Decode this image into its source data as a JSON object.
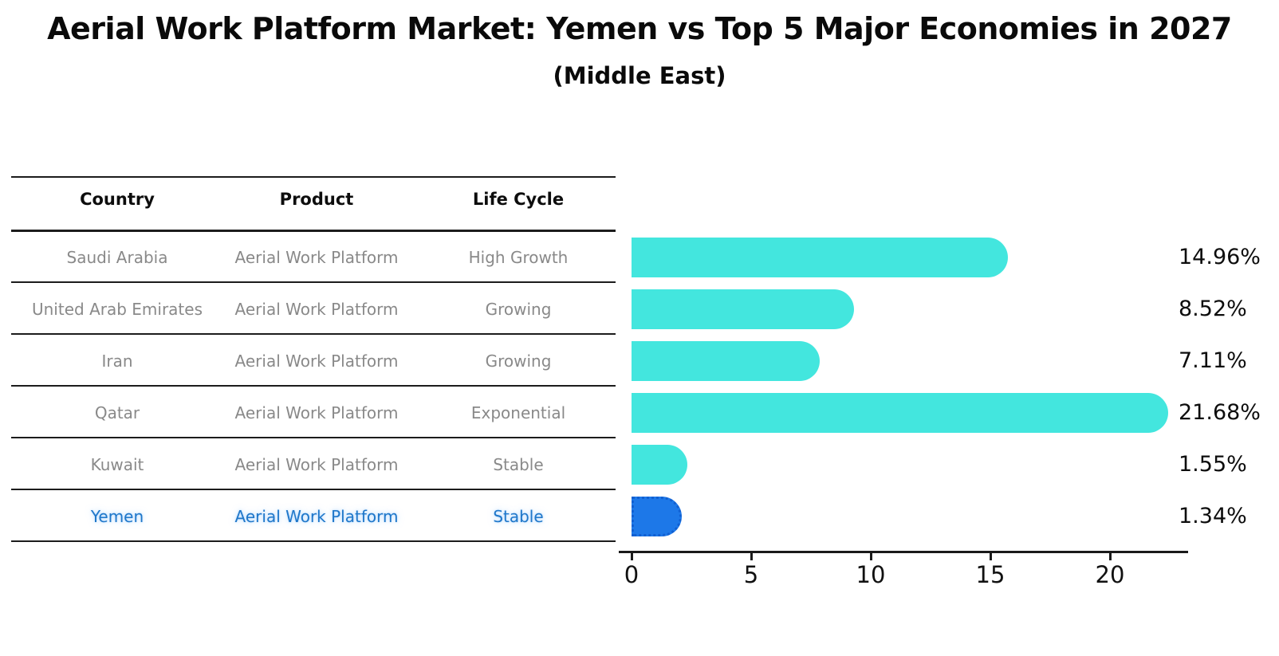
{
  "title": "Aerial Work Platform Market: Yemen vs Top 5 Major Economies in 2027",
  "subtitle": "(Middle East)",
  "table": {
    "headers": [
      "Country",
      "Product",
      "Life Cycle"
    ],
    "rows": [
      {
        "country": "Saudi Arabia",
        "product": "Aerial Work Platform",
        "life_cycle": "High Growth",
        "highlight": false
      },
      {
        "country": "United Arab Emirates",
        "product": "Aerial Work Platform",
        "life_cycle": "Growing",
        "highlight": false
      },
      {
        "country": "Iran",
        "product": "Aerial Work Platform",
        "life_cycle": "Growing",
        "highlight": false
      },
      {
        "country": "Qatar",
        "product": "Aerial Work Platform",
        "life_cycle": "Exponential",
        "highlight": false
      },
      {
        "country": "Kuwait",
        "product": "Aerial Work Platform",
        "life_cycle": "Stable",
        "highlight": false
      },
      {
        "country": "Yemen",
        "product": "Aerial Work Platform",
        "life_cycle": "Stable",
        "highlight": true
      }
    ]
  },
  "chart_data": {
    "type": "bar",
    "orientation": "horizontal",
    "title": "Aerial Work Platform Market: Yemen vs Top 5 Major Economies in 2027 (Middle East)",
    "categories": [
      "Saudi Arabia",
      "United Arab Emirates",
      "Iran",
      "Qatar",
      "Kuwait",
      "Yemen"
    ],
    "values": [
      14.96,
      8.52,
      7.11,
      21.68,
      1.55,
      1.34
    ],
    "value_labels": [
      "14.96%",
      "8.52%",
      "7.11%",
      "21.68%",
      "1.55%",
      "1.34%"
    ],
    "xlabel": "",
    "ylabel": "",
    "xticks": [
      0,
      5,
      10,
      15,
      20
    ],
    "xlim": [
      0,
      22.5
    ],
    "grid": false,
    "legend": false,
    "bar_color": "#43e6de",
    "highlight_bar_color": "#1d78e8",
    "highlight_border_color": "#1160d2",
    "highlight_index": 5,
    "text_gray": "#898989",
    "highlight_text_color": "#1f77c9"
  }
}
